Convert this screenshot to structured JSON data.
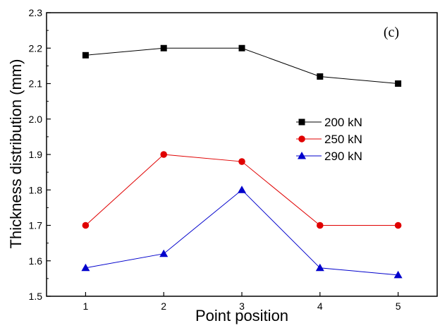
{
  "chart_data": {
    "type": "line",
    "panel_label": "(c)",
    "xlabel": "Point position",
    "ylabel": "Thickness distribution (mm)",
    "x": [
      1,
      2,
      3,
      4,
      5
    ],
    "xlim": [
      0.5,
      5.5
    ],
    "ylim": [
      1.5,
      2.3
    ],
    "xticks": [
      "1",
      "2",
      "3",
      "4",
      "5"
    ],
    "yticks": [
      "1.5",
      "1.6",
      "1.7",
      "1.8",
      "1.9",
      "2.0",
      "2.1",
      "2.2",
      "2.3"
    ],
    "grid": false,
    "legend_position": "center-right",
    "series": [
      {
        "name": "200 kN",
        "values": [
          2.18,
          2.2,
          2.2,
          2.12,
          2.1
        ],
        "color": "#000000",
        "marker": "square"
      },
      {
        "name": "250 kN",
        "values": [
          1.7,
          1.9,
          1.88,
          1.7,
          1.7
        ],
        "color": "#e00000",
        "marker": "circle"
      },
      {
        "name": "290 kN",
        "values": [
          1.58,
          1.62,
          1.8,
          1.58,
          1.56
        ],
        "color": "#0000cc",
        "marker": "triangle"
      }
    ]
  }
}
